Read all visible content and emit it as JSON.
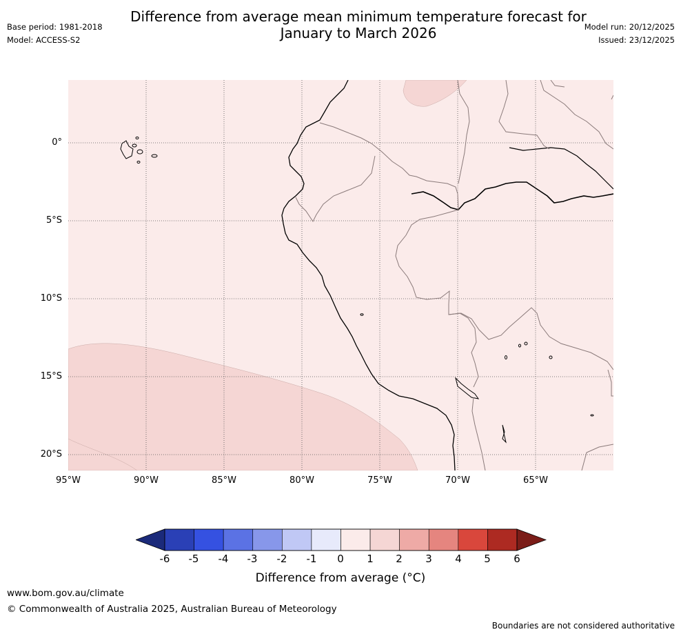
{
  "header": {
    "title_line1": "Difference from average mean minimum temperature forecast for",
    "title_line2": "January to March 2026",
    "base_period": "Base period: 1981-2018",
    "model": "Model: ACCESS-S2",
    "model_run": "Model run: 20/12/2025",
    "issued": "Issued: 23/12/2025"
  },
  "map": {
    "lat_labels": [
      "0°",
      "5°S",
      "10°S",
      "15°S",
      "20°S"
    ],
    "lon_labels": [
      "95°W",
      "90°W",
      "85°W",
      "80°W",
      "75°W",
      "70°W",
      "65°W"
    ],
    "extent": {
      "lon_min": -95,
      "lon_max": -60,
      "lat_min": -21,
      "lat_max": 4
    },
    "background_category": "0 to 1",
    "anomaly_regions": [
      {
        "category": "1 to 2",
        "area": "south-west Pacific Ocean"
      },
      {
        "category": "1 to 2",
        "area": "northern Colombia / Venezuela border"
      }
    ]
  },
  "colorbar": {
    "label": "Difference from average (°C)",
    "tick_labels": [
      "-6",
      "-5",
      "-4",
      "-3",
      "-2",
      "-1",
      "0",
      "1",
      "2",
      "3",
      "4",
      "5",
      "6"
    ],
    "colors": [
      "#1b2a7a",
      "#2a40b6",
      "#3551e1",
      "#5b72e4",
      "#8797ea",
      "#c0c8f5",
      "#e7eafb",
      "#fbebea",
      "#f5d6d4",
      "#eeaaa6",
      "#e5857f",
      "#d9473c",
      "#ad2a22",
      "#7b1d18"
    ]
  },
  "footer": {
    "url": "www.bom.gov.au/climate",
    "copyright": "© Commonwealth of Australia 2025, Australian Bureau of Meteorology",
    "disclaimer": "Boundaries are not considered authoritative"
  }
}
